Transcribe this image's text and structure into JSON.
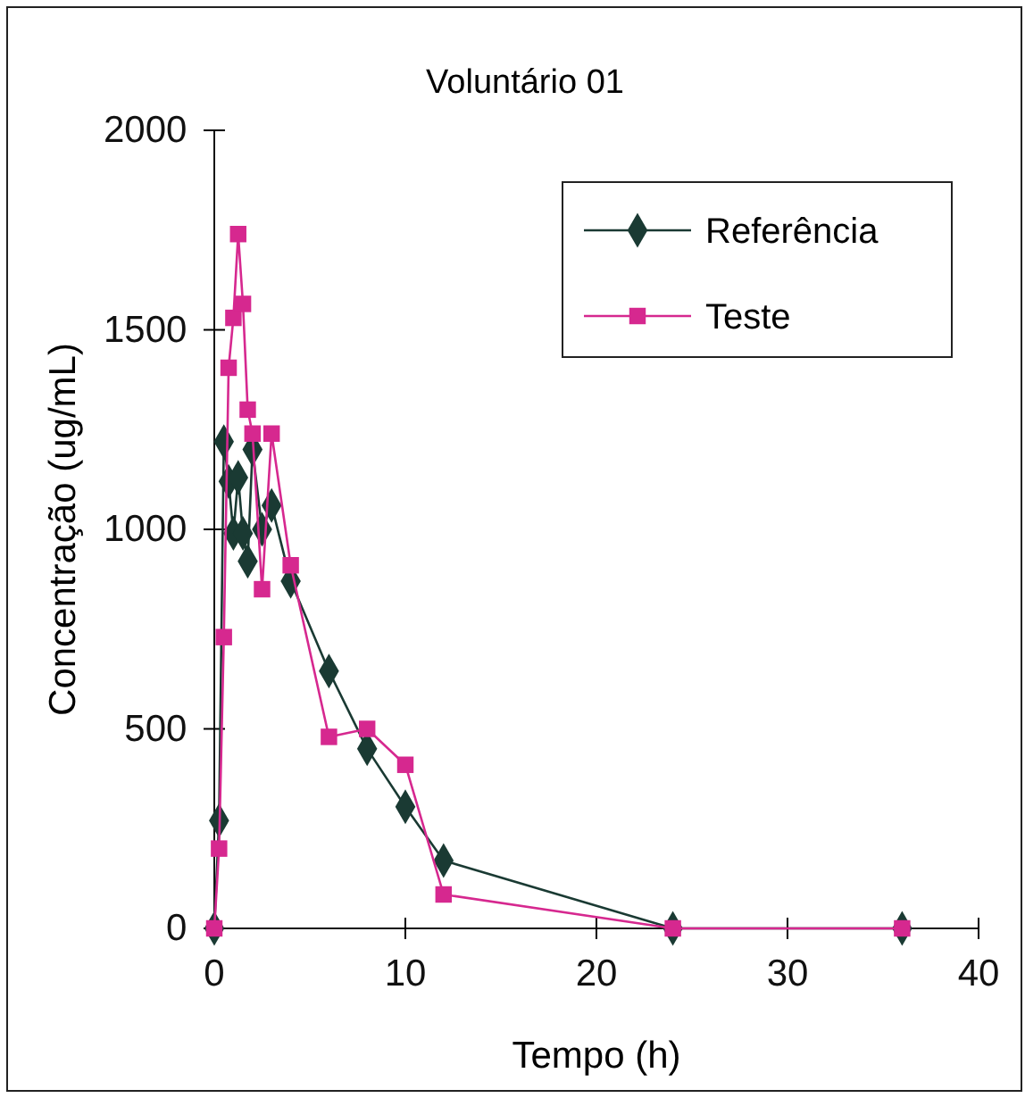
{
  "chart_data": {
    "type": "line",
    "title": "Voluntário 01",
    "xlabel": "Tempo (h)",
    "ylabel": "Concentração (ug/mL)",
    "xlim": [
      0,
      40
    ],
    "xticks": [
      0,
      10,
      20,
      30,
      40
    ],
    "ylim": [
      0,
      2000
    ],
    "yticks": [
      0,
      500,
      1000,
      1500,
      2000
    ],
    "legend": "top right",
    "grid": false,
    "series": [
      {
        "name": "Referência",
        "color": "#1a3a33",
        "marker": "diamond",
        "x": [
          0,
          0.25,
          0.5,
          0.75,
          1,
          1.25,
          1.5,
          1.75,
          2,
          2.5,
          3,
          4,
          6,
          8,
          10,
          12,
          24,
          36
        ],
        "values": [
          0,
          270,
          1220,
          1120,
          990,
          1130,
          990,
          920,
          1200,
          1000,
          1060,
          870,
          645,
          450,
          305,
          170,
          0,
          0
        ]
      },
      {
        "name": "Teste",
        "color": "#d6288f",
        "marker": "square",
        "x": [
          0,
          0.25,
          0.5,
          0.75,
          1,
          1.25,
          1.5,
          1.75,
          2,
          2.5,
          3,
          4,
          6,
          8,
          10,
          12,
          24,
          36
        ],
        "values": [
          0,
          200,
          730,
          1405,
          1530,
          1740,
          1565,
          1300,
          1240,
          850,
          1240,
          910,
          480,
          500,
          410,
          85,
          0,
          0
        ]
      }
    ]
  }
}
